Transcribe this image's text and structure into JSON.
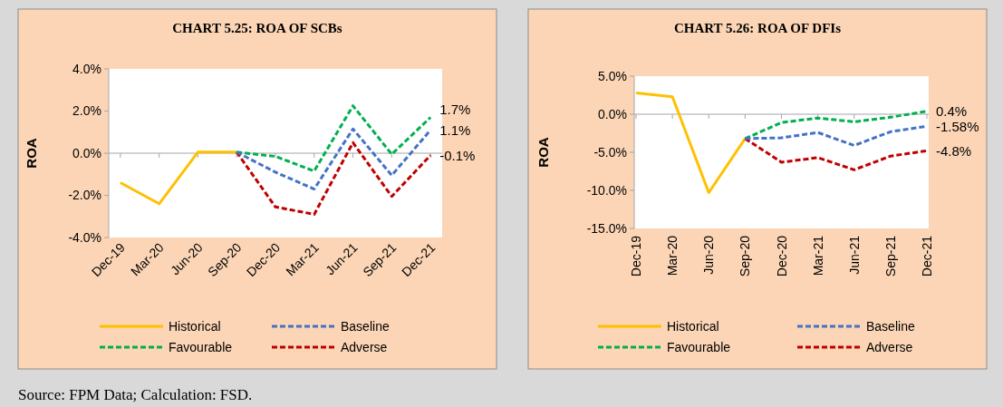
{
  "chart_data": [
    {
      "type": "line",
      "title": "CHART 5.25: ROA OF SCBs",
      "ylabel": "ROA",
      "categories": [
        "Dec-19",
        "Mar-20",
        "Jun-20",
        "Sep-20",
        "Dec-20",
        "Mar-21",
        "Jun-21",
        "Sep-21",
        "Dec-21"
      ],
      "series": [
        {
          "name": "Historical",
          "color": "#ffc000",
          "line_style": "solid",
          "values": [
            -1.4,
            -2.4,
            0.05,
            0.05,
            null,
            null,
            null,
            null,
            null
          ]
        },
        {
          "name": "Baseline",
          "color": "#4472c4",
          "line_style": "dashed",
          "values": [
            null,
            null,
            null,
            0.05,
            -0.9,
            -1.7,
            1.15,
            -1.05,
            1.1
          ]
        },
        {
          "name": "Favourable",
          "color": "#00b050",
          "line_style": "dashed",
          "values": [
            null,
            null,
            null,
            0.05,
            -0.15,
            -0.85,
            2.25,
            -0.05,
            1.7
          ]
        },
        {
          "name": "Adverse",
          "color": "#c00000",
          "line_style": "dashed",
          "values": [
            null,
            null,
            null,
            0.05,
            -2.55,
            -2.9,
            0.5,
            -2.05,
            -0.1
          ]
        }
      ],
      "ylim": [
        -4,
        4
      ],
      "yticks": [
        {
          "value": -4,
          "label": "-4.0%"
        },
        {
          "value": -2,
          "label": "-2.0%"
        },
        {
          "value": 0,
          "label": "0.0%"
        },
        {
          "value": 2,
          "label": "2.0%"
        },
        {
          "value": 4,
          "label": "4.0%"
        }
      ],
      "legend": "bottom",
      "annotations": [
        {
          "text": "1.7%",
          "x": "Dec-21",
          "y": 1.7
        },
        {
          "text": "1.1%",
          "x": "Dec-21",
          "y": 1.1
        },
        {
          "text": "-0.1%",
          "x": "Dec-21",
          "y": -0.1
        },
        "Source: FPM Data; Calculation: FSD."
      ]
    },
    {
      "type": "line",
      "title": "CHART 5.26: ROA OF DFIs",
      "ylabel": "ROA",
      "categories": [
        "Dec-19",
        "Mar-20",
        "Jun-20",
        "Sep-20",
        "Dec-20",
        "Mar-21",
        "Jun-21",
        "Sep-21",
        "Dec-21"
      ],
      "series": [
        {
          "name": "Historical",
          "color": "#ffc000",
          "line_style": "solid",
          "values": [
            2.8,
            2.3,
            -10.3,
            -3.2,
            null,
            null,
            null,
            null,
            null
          ]
        },
        {
          "name": "Baseline",
          "color": "#4472c4",
          "line_style": "dashed",
          "values": [
            null,
            null,
            null,
            -3.2,
            -3.1,
            -2.4,
            -4.1,
            -2.3,
            -1.58
          ]
        },
        {
          "name": "Favourable",
          "color": "#00b050",
          "line_style": "dashed",
          "values": [
            null,
            null,
            null,
            -3.2,
            -1.1,
            -0.5,
            -1.0,
            -0.4,
            0.4
          ]
        },
        {
          "name": "Adverse",
          "color": "#c00000",
          "line_style": "dashed",
          "values": [
            null,
            null,
            null,
            -3.2,
            -6.3,
            -5.7,
            -7.3,
            -5.5,
            -4.8
          ]
        }
      ],
      "ylim": [
        -15,
        5
      ],
      "yticks": [
        {
          "value": -15,
          "label": "-15.0%"
        },
        {
          "value": -10,
          "label": "-10.0%"
        },
        {
          "value": -5,
          "label": "-5.0%"
        },
        {
          "value": 0,
          "label": "0.0%"
        },
        {
          "value": 5,
          "label": "5.0%"
        }
      ],
      "legend": "bottom",
      "annotations": [
        {
          "text": "0.4%",
          "x": "Dec-21",
          "y": 0.4
        },
        {
          "text": "-1.58%",
          "x": "Dec-21",
          "y": -1.58
        },
        {
          "text": "-4.8%",
          "x": "Dec-21",
          "y": -4.8
        }
      ]
    }
  ]
}
